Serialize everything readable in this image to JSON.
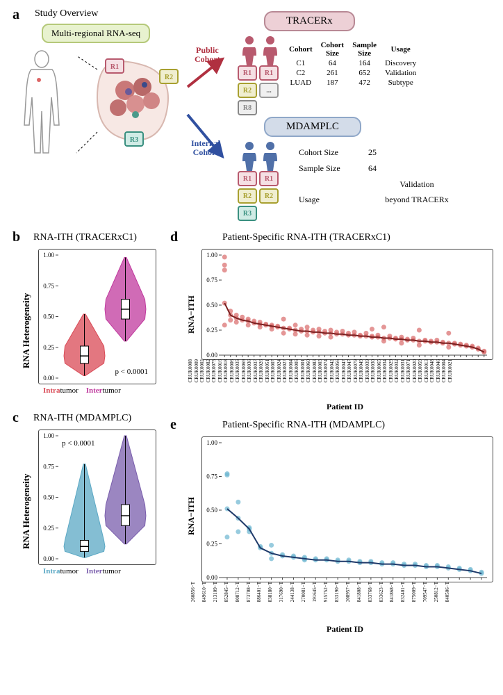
{
  "panelA": {
    "label": "a",
    "title": "Study Overview",
    "rnaseq_box": "Multi-regional RNA-seq",
    "tracerx_title": "TRACERx",
    "mdamplc_title": "MDAMPLC",
    "public_cohort": "Public\nCohort",
    "internal_cohort": "Internal\nCohort",
    "tracerx_table": {
      "headers": [
        "Cohort",
        "Cohort Size",
        "Sample Size",
        "Usage"
      ],
      "rows": [
        [
          "C1",
          "64",
          "164",
          "Discovery"
        ],
        [
          "C2",
          "261",
          "652",
          "Validation"
        ],
        [
          "LUAD",
          "187",
          "472",
          "Subtype"
        ]
      ]
    },
    "mdamplc_info": [
      [
        "Cohort Size",
        "25"
      ],
      [
        "Sample Size",
        "64"
      ],
      [
        "Usage",
        "Validation beyond TRACERx"
      ]
    ]
  },
  "panelB": {
    "label": "b",
    "title": "RNA-ITH (TRACERxC1)",
    "ylabel": "RNA Heterogeneity",
    "ylim": [
      0.0,
      1.0
    ],
    "yticks": [
      0.0,
      0.25,
      0.5,
      0.75,
      1.0
    ],
    "pval": "p < 0.0001",
    "groups": [
      {
        "label_pre": "Intra",
        "label_suf": "tumor",
        "color": "#d94a56",
        "median": 0.18,
        "q1": 0.12,
        "q3": 0.26,
        "min": 0.02,
        "max": 0.52
      },
      {
        "label_pre": "Inter",
        "label_suf": "tumor",
        "color": "#c03a9e",
        "median": 0.56,
        "q1": 0.48,
        "q3": 0.64,
        "min": 0.3,
        "max": 0.98
      }
    ],
    "colors": {
      "intra": "#e15a62",
      "inter": "#cc4da8"
    }
  },
  "panelC": {
    "label": "c",
    "title": "RNA-ITH (MDAMPLC)",
    "ylabel": "RNA Heterogeneity",
    "ylim": [
      0.0,
      1.0
    ],
    "yticks": [
      0.0,
      0.25,
      0.5,
      0.75,
      1.0
    ],
    "pval": "p < 0.0001",
    "groups": [
      {
        "label_pre": "Intra",
        "label_suf": "tumor",
        "color": "#5ba8c4",
        "median": 0.1,
        "q1": 0.06,
        "q3": 0.15,
        "min": 0.01,
        "max": 0.77
      },
      {
        "label_pre": "Inter",
        "label_suf": "tumor",
        "color": "#7a5eac",
        "median": 0.35,
        "q1": 0.27,
        "q3": 0.44,
        "min": 0.12,
        "max": 1.0
      }
    ],
    "colors": {
      "intra": "#6fb8d0",
      "inter": "#8a70b8"
    }
  },
  "panelD": {
    "label": "d",
    "title": "Patient-Specific RNA-ITH (TRACERxC1)",
    "ylabel": "RNA−ITH",
    "xlabel": "Patient ID",
    "ylim": [
      0.0,
      1.0
    ],
    "yticks": [
      0.0,
      0.25,
      0.5,
      0.75,
      1.0
    ],
    "point_color": "#d96a6a",
    "line_color": "#7a1f1f",
    "patients": [
      "CRUK0008",
      "CRUK0009",
      "CRUK0002",
      "CRUK0082",
      "CRUK0075",
      "CRUK0016",
      "CRUK0018",
      "CRUK0006",
      "CRUK0035",
      "CRUK0069",
      "CRUK0036",
      "CRUK0037",
      "CRUK0026",
      "CRUK0051",
      "CRUK0007",
      "CRUK0024",
      "CRUK0027",
      "CRUK0004",
      "CRUK0005",
      "CRUK0001",
      "CRUK0060",
      "CRUK0083",
      "CRUK0003",
      "CRUK0074",
      "CRUK0042",
      "CRUK0056",
      "CRUK0047",
      "CRUK0047",
      "CRUK0079",
      "CRUK0049",
      "CRUK0039",
      "CRUK0030",
      "CRUK0065",
      "CRUK0034",
      "CRUK0029",
      "CRUK0032",
      "CRUK0031",
      "CRUK0071",
      "CRUK0020",
      "CRUK0059",
      "CRUK0013",
      "CRUK0048",
      "CRUK0046",
      "CRUK0004",
      "CRUK0021"
    ],
    "line_y": [
      0.52,
      0.4,
      0.37,
      0.35,
      0.34,
      0.32,
      0.31,
      0.3,
      0.29,
      0.28,
      0.27,
      0.26,
      0.25,
      0.24,
      0.24,
      0.23,
      0.23,
      0.22,
      0.22,
      0.21,
      0.21,
      0.2,
      0.2,
      0.19,
      0.19,
      0.18,
      0.18,
      0.17,
      0.17,
      0.16,
      0.16,
      0.15,
      0.15,
      0.14,
      0.14,
      0.13,
      0.13,
      0.12,
      0.12,
      0.11,
      0.1,
      0.09,
      0.08,
      0.06,
      0.03
    ],
    "scatter_extra": [
      [
        0,
        0.98
      ],
      [
        0,
        0.9
      ],
      [
        0,
        0.85
      ],
      [
        0,
        0.3
      ],
      [
        1,
        0.44
      ],
      [
        1,
        0.35
      ],
      [
        2,
        0.4
      ],
      [
        2,
        0.33
      ],
      [
        3,
        0.38
      ],
      [
        4,
        0.36
      ],
      [
        4,
        0.3
      ],
      [
        5,
        0.34
      ],
      [
        6,
        0.33
      ],
      [
        6,
        0.28
      ],
      [
        7,
        0.31
      ],
      [
        8,
        0.3
      ],
      [
        8,
        0.26
      ],
      [
        9,
        0.29
      ],
      [
        10,
        0.36
      ],
      [
        10,
        0.22
      ],
      [
        11,
        0.27
      ],
      [
        12,
        0.3
      ],
      [
        12,
        0.21
      ],
      [
        13,
        0.26
      ],
      [
        14,
        0.28
      ],
      [
        14,
        0.2
      ],
      [
        15,
        0.25
      ],
      [
        16,
        0.26
      ],
      [
        16,
        0.19
      ],
      [
        17,
        0.24
      ],
      [
        18,
        0.25
      ],
      [
        18,
        0.18
      ],
      [
        19,
        0.23
      ],
      [
        20,
        0.24
      ],
      [
        21,
        0.22
      ],
      [
        22,
        0.23
      ],
      [
        23,
        0.2
      ],
      [
        24,
        0.22
      ],
      [
        25,
        0.19
      ],
      [
        25,
        0.26
      ],
      [
        26,
        0.2
      ],
      [
        27,
        0.28
      ],
      [
        27,
        0.14
      ],
      [
        28,
        0.19
      ],
      [
        29,
        0.17
      ],
      [
        30,
        0.18
      ],
      [
        30,
        0.12
      ],
      [
        31,
        0.16
      ],
      [
        32,
        0.17
      ],
      [
        33,
        0.25
      ],
      [
        33,
        0.1
      ],
      [
        34,
        0.15
      ],
      [
        35,
        0.14
      ],
      [
        36,
        0.15
      ],
      [
        37,
        0.13
      ],
      [
        38,
        0.22
      ],
      [
        38,
        0.08
      ],
      [
        39,
        0.12
      ],
      [
        40,
        0.11
      ],
      [
        41,
        0.1
      ],
      [
        42,
        0.09
      ],
      [
        43,
        0.07
      ],
      [
        44,
        0.04
      ]
    ]
  },
  "panelE": {
    "label": "e",
    "title": "Patient-Specific RNA-ITH (MDAMPLC)",
    "ylabel": "RNA−ITH",
    "xlabel": "Patient ID",
    "ylim": [
      0.0,
      1.0
    ],
    "yticks": [
      0.0,
      0.25,
      0.5,
      0.75,
      1.0
    ],
    "point_color": "#6bb5d0",
    "line_color": "#1f3a6a",
    "patients": [
      "260856−T",
      "849610−T",
      "213109−T",
      "852845−T",
      "808712−T",
      "873708−T",
      "886401−T",
      "838180−T",
      "317690−T",
      "244138−T",
      "270081−T",
      "191645−T",
      "915752−T",
      "833190−T",
      "208957−T",
      "841808−T",
      "833768−T",
      "833623−T",
      "841868−T",
      "832401−T",
      "875009−T",
      "709547−T",
      "250812−T",
      "840506−T"
    ],
    "line_y": [
      0.51,
      0.44,
      0.36,
      0.22,
      0.18,
      0.16,
      0.15,
      0.14,
      0.13,
      0.13,
      0.12,
      0.12,
      0.11,
      0.11,
      0.1,
      0.1,
      0.09,
      0.09,
      0.08,
      0.08,
      0.07,
      0.06,
      0.05,
      0.03
    ],
    "scatter_extra": [
      [
        0,
        0.77
      ],
      [
        0,
        0.76
      ],
      [
        0,
        0.3
      ],
      [
        1,
        0.56
      ],
      [
        1,
        0.34
      ],
      [
        2,
        0.37
      ],
      [
        2,
        0.34
      ],
      [
        3,
        0.23
      ],
      [
        4,
        0.24
      ],
      [
        4,
        0.14
      ],
      [
        5,
        0.17
      ],
      [
        6,
        0.16
      ],
      [
        7,
        0.15
      ],
      [
        7,
        0.13
      ],
      [
        8,
        0.14
      ],
      [
        9,
        0.14
      ],
      [
        10,
        0.13
      ],
      [
        11,
        0.13
      ],
      [
        12,
        0.12
      ],
      [
        13,
        0.12
      ],
      [
        14,
        0.11
      ],
      [
        15,
        0.11
      ],
      [
        16,
        0.1
      ],
      [
        17,
        0.1
      ],
      [
        18,
        0.09
      ],
      [
        19,
        0.09
      ],
      [
        20,
        0.08
      ],
      [
        21,
        0.07
      ],
      [
        22,
        0.06
      ],
      [
        23,
        0.04
      ]
    ]
  }
}
